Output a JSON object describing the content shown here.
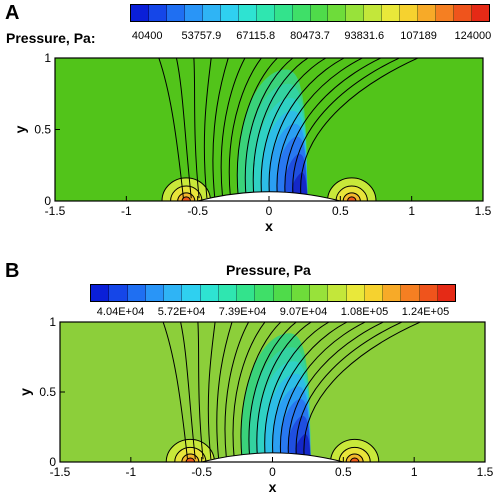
{
  "chart_data": [
    {
      "type": "contour",
      "panel": "A",
      "colorbar_title": "Pressure, Pa:",
      "colorbar_tick_labels": [
        "40400",
        "53757.9",
        "67115.8",
        "80473.7",
        "93831.6",
        "107189",
        "124000"
      ],
      "colorbar_range": [
        40400,
        124000
      ],
      "xlabel": "x",
      "ylabel": "y",
      "xlim": [
        -1.5,
        1.5
      ],
      "ylim": [
        0,
        1
      ],
      "xticks": [
        "-1.5",
        "-1",
        "-0.5",
        "0",
        "0.5",
        "1",
        "1.5"
      ],
      "yticks": [
        "0",
        "0.5",
        "1"
      ],
      "ambient_color": "#52c41a",
      "bump_extent": [
        -0.5,
        0.5
      ]
    },
    {
      "type": "contour",
      "panel": "B",
      "colorbar_title": "Pressure, Pa",
      "colorbar_tick_labels": [
        "4.04E+04",
        "5.72E+04",
        "7.39E+04",
        "9.07E+04",
        "1.08E+05",
        "1.24E+05"
      ],
      "colorbar_range": [
        40400,
        124000
      ],
      "xlabel": "x",
      "ylabel": "y",
      "xlim": [
        -1.5,
        1.5
      ],
      "ylim": [
        0,
        1
      ],
      "xticks": [
        "-1.5",
        "-1",
        "-0.5",
        "0",
        "0.5",
        "1",
        "1.5"
      ],
      "yticks": [
        "0",
        "0.5",
        "1"
      ],
      "ambient_color": "#8ccf3a",
      "bump_extent": [
        -0.5,
        0.5
      ]
    }
  ],
  "colorbar_colors": [
    "#0a1fd8",
    "#1546e8",
    "#1f6ff2",
    "#2995f7",
    "#2fb4f5",
    "#2fd0f0",
    "#2ee3d2",
    "#2fe6b0",
    "#33e38c",
    "#3fdf68",
    "#4fdb4a",
    "#6edc3a",
    "#98e23a",
    "#c3e73a",
    "#e9e83a",
    "#f6d22f",
    "#f7aa28",
    "#f57f22",
    "#ef541c",
    "#e52a16"
  ]
}
